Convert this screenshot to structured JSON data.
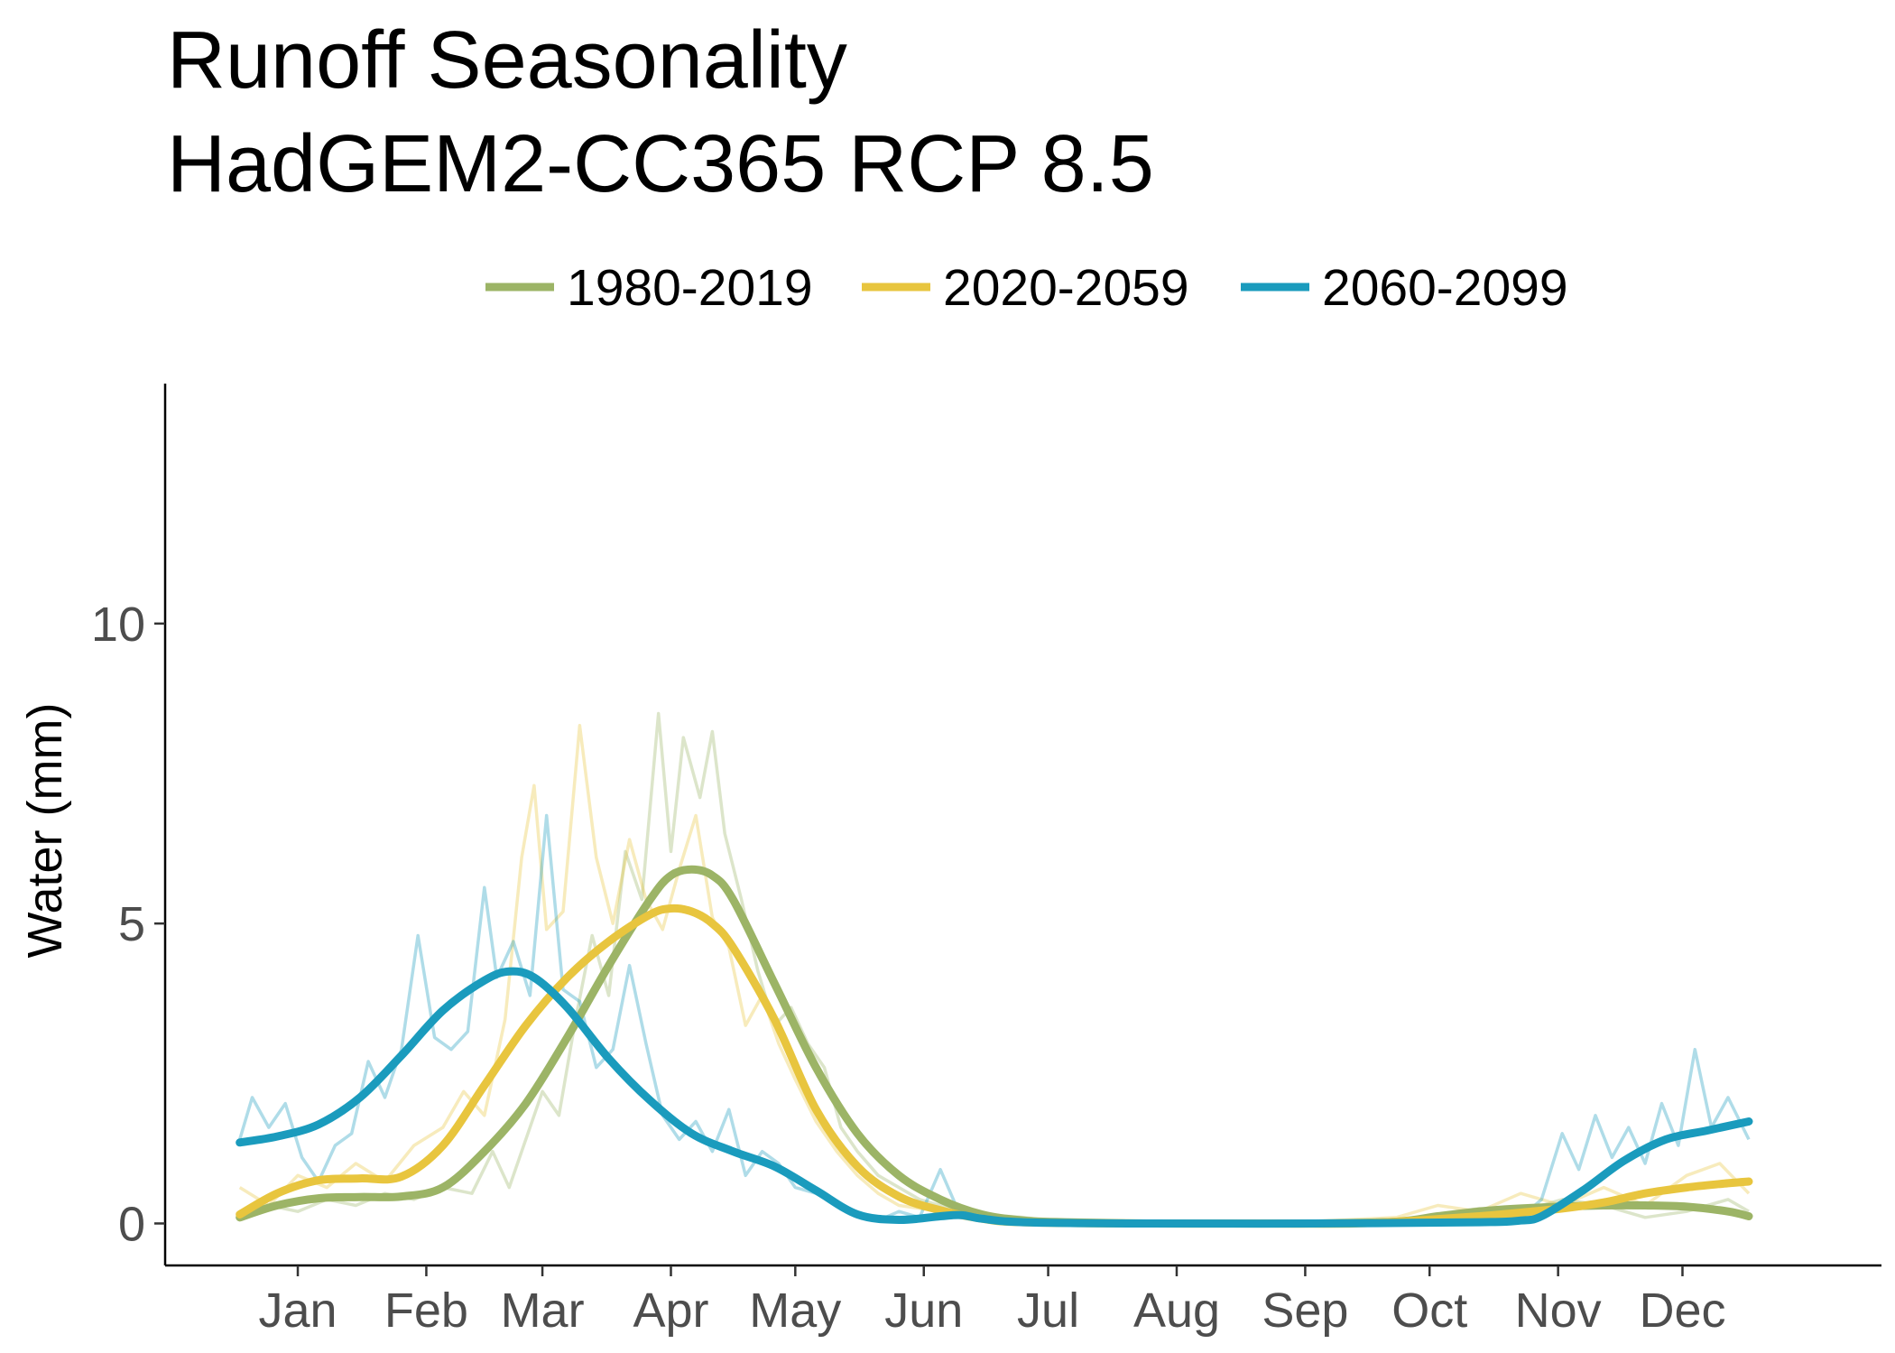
{
  "chart_data": {
    "type": "line",
    "title": "Runoff Seasonality",
    "subtitle": "HadGEM2-CC365 RCP 8.5",
    "xlabel": "",
    "ylabel": "Water (mm)",
    "x_ticks": [
      "Jan",
      "Feb",
      "Mar",
      "Apr",
      "May",
      "Jun",
      "Jul",
      "Aug",
      "Sep",
      "Oct",
      "Nov",
      "Dec"
    ],
    "x_tick_days": [
      15,
      46,
      74,
      105,
      135,
      166,
      196,
      227,
      258,
      288,
      319,
      349
    ],
    "xlim": [
      -17,
      397
    ],
    "y_ticks": [
      0,
      5,
      10
    ],
    "ylim": [
      -0.7,
      14
    ],
    "grid": false,
    "legend_position": "top",
    "series": [
      {
        "name": "1980-2019",
        "color": "#9cb466",
        "smoothed": [
          [
            1,
            0.1
          ],
          [
            10,
            0.3
          ],
          [
            20,
            0.42
          ],
          [
            30,
            0.44
          ],
          [
            40,
            0.45
          ],
          [
            50,
            0.6
          ],
          [
            60,
            1.2
          ],
          [
            70,
            2.0
          ],
          [
            80,
            3.1
          ],
          [
            90,
            4.3
          ],
          [
            100,
            5.4
          ],
          [
            105,
            5.8
          ],
          [
            110,
            5.9
          ],
          [
            115,
            5.8
          ],
          [
            120,
            5.4
          ],
          [
            130,
            4.0
          ],
          [
            140,
            2.6
          ],
          [
            150,
            1.5
          ],
          [
            160,
            0.8
          ],
          [
            170,
            0.4
          ],
          [
            180,
            0.15
          ],
          [
            190,
            0.05
          ],
          [
            200,
            0.02
          ],
          [
            220,
            0.0
          ],
          [
            240,
            0.0
          ],
          [
            260,
            0.0
          ],
          [
            280,
            0.03
          ],
          [
            290,
            0.12
          ],
          [
            300,
            0.2
          ],
          [
            310,
            0.25
          ],
          [
            320,
            0.28
          ],
          [
            330,
            0.3
          ],
          [
            340,
            0.3
          ],
          [
            350,
            0.28
          ],
          [
            360,
            0.2
          ],
          [
            365,
            0.12
          ]
        ],
        "raw": [
          [
            1,
            0.1
          ],
          [
            8,
            0.3
          ],
          [
            15,
            0.2
          ],
          [
            22,
            0.4
          ],
          [
            29,
            0.3
          ],
          [
            36,
            0.5
          ],
          [
            43,
            0.4
          ],
          [
            50,
            0.6
          ],
          [
            57,
            0.5
          ],
          [
            62,
            1.2
          ],
          [
            66,
            0.6
          ],
          [
            70,
            1.4
          ],
          [
            74,
            2.2
          ],
          [
            78,
            1.8
          ],
          [
            82,
            3.4
          ],
          [
            86,
            4.8
          ],
          [
            90,
            3.8
          ],
          [
            94,
            6.2
          ],
          [
            98,
            5.4
          ],
          [
            102,
            8.5
          ],
          [
            105,
            6.2
          ],
          [
            108,
            8.1
          ],
          [
            112,
            7.1
          ],
          [
            115,
            8.2
          ],
          [
            118,
            6.5
          ],
          [
            122,
            5.4
          ],
          [
            126,
            4.2
          ],
          [
            130,
            3.3
          ],
          [
            134,
            3.6
          ],
          [
            138,
            3.0
          ],
          [
            142,
            2.6
          ],
          [
            146,
            1.6
          ],
          [
            150,
            1.2
          ],
          [
            155,
            0.8
          ],
          [
            160,
            0.6
          ],
          [
            165,
            0.4
          ],
          [
            170,
            0.3
          ],
          [
            180,
            0.15
          ],
          [
            190,
            0.1
          ],
          [
            200,
            0.02
          ],
          [
            220,
            0.0
          ],
          [
            260,
            0.0
          ],
          [
            280,
            0.05
          ],
          [
            290,
            0.15
          ],
          [
            300,
            0.25
          ],
          [
            310,
            0.2
          ],
          [
            320,
            0.4
          ],
          [
            330,
            0.3
          ],
          [
            340,
            0.1
          ],
          [
            350,
            0.2
          ],
          [
            360,
            0.4
          ],
          [
            365,
            0.2
          ]
        ]
      },
      {
        "name": "2020-2059",
        "color": "#e8c53e",
        "smoothed": [
          [
            1,
            0.15
          ],
          [
            10,
            0.5
          ],
          [
            20,
            0.72
          ],
          [
            30,
            0.75
          ],
          [
            40,
            0.78
          ],
          [
            50,
            1.3
          ],
          [
            60,
            2.3
          ],
          [
            70,
            3.3
          ],
          [
            80,
            4.1
          ],
          [
            90,
            4.7
          ],
          [
            100,
            5.15
          ],
          [
            105,
            5.25
          ],
          [
            110,
            5.2
          ],
          [
            115,
            5.0
          ],
          [
            120,
            4.6
          ],
          [
            130,
            3.4
          ],
          [
            140,
            1.9
          ],
          [
            150,
            0.95
          ],
          [
            160,
            0.45
          ],
          [
            170,
            0.22
          ],
          [
            180,
            0.08
          ],
          [
            190,
            0.02
          ],
          [
            220,
            0.0
          ],
          [
            250,
            0.0
          ],
          [
            270,
            0.0
          ],
          [
            285,
            0.05
          ],
          [
            300,
            0.12
          ],
          [
            310,
            0.18
          ],
          [
            320,
            0.25
          ],
          [
            330,
            0.35
          ],
          [
            340,
            0.5
          ],
          [
            350,
            0.6
          ],
          [
            360,
            0.67
          ],
          [
            365,
            0.7
          ]
        ],
        "raw": [
          [
            1,
            0.6
          ],
          [
            8,
            0.3
          ],
          [
            15,
            0.8
          ],
          [
            22,
            0.6
          ],
          [
            29,
            1.0
          ],
          [
            36,
            0.7
          ],
          [
            43,
            1.3
          ],
          [
            50,
            1.6
          ],
          [
            55,
            2.2
          ],
          [
            60,
            1.8
          ],
          [
            65,
            3.4
          ],
          [
            69,
            6.1
          ],
          [
            72,
            7.3
          ],
          [
            75,
            4.9
          ],
          [
            79,
            5.2
          ],
          [
            83,
            8.3
          ],
          [
            87,
            6.1
          ],
          [
            91,
            5.0
          ],
          [
            95,
            6.4
          ],
          [
            99,
            5.4
          ],
          [
            103,
            4.9
          ],
          [
            107,
            5.9
          ],
          [
            111,
            6.8
          ],
          [
            115,
            5.1
          ],
          [
            119,
            4.6
          ],
          [
            123,
            3.3
          ],
          [
            127,
            3.8
          ],
          [
            131,
            3.0
          ],
          [
            135,
            2.4
          ],
          [
            140,
            1.7
          ],
          [
            145,
            1.2
          ],
          [
            150,
            0.8
          ],
          [
            155,
            0.5
          ],
          [
            160,
            0.3
          ],
          [
            170,
            0.2
          ],
          [
            180,
            0.05
          ],
          [
            200,
            0.0
          ],
          [
            250,
            0.0
          ],
          [
            280,
            0.1
          ],
          [
            290,
            0.3
          ],
          [
            300,
            0.2
          ],
          [
            310,
            0.5
          ],
          [
            320,
            0.3
          ],
          [
            330,
            0.6
          ],
          [
            340,
            0.3
          ],
          [
            350,
            0.8
          ],
          [
            358,
            1.0
          ],
          [
            365,
            0.5
          ]
        ]
      },
      {
        "name": "2060-2099",
        "color": "#1a9bbd",
        "smoothed": [
          [
            1,
            1.35
          ],
          [
            10,
            1.45
          ],
          [
            20,
            1.65
          ],
          [
            30,
            2.1
          ],
          [
            40,
            2.8
          ],
          [
            50,
            3.55
          ],
          [
            60,
            4.05
          ],
          [
            66,
            4.2
          ],
          [
            72,
            4.1
          ],
          [
            80,
            3.6
          ],
          [
            90,
            2.75
          ],
          [
            100,
            2.05
          ],
          [
            110,
            1.5
          ],
          [
            120,
            1.2
          ],
          [
            130,
            0.95
          ],
          [
            140,
            0.55
          ],
          [
            150,
            0.15
          ],
          [
            160,
            0.06
          ],
          [
            170,
            0.12
          ],
          [
            175,
            0.14
          ],
          [
            180,
            0.08
          ],
          [
            190,
            0.02
          ],
          [
            220,
            0.0
          ],
          [
            260,
            0.0
          ],
          [
            300,
            0.02
          ],
          [
            310,
            0.05
          ],
          [
            315,
            0.12
          ],
          [
            325,
            0.55
          ],
          [
            335,
            1.05
          ],
          [
            345,
            1.4
          ],
          [
            355,
            1.55
          ],
          [
            365,
            1.7
          ]
        ],
        "raw": [
          [
            1,
            1.4
          ],
          [
            4,
            2.1
          ],
          [
            8,
            1.6
          ],
          [
            12,
            2.0
          ],
          [
            16,
            1.1
          ],
          [
            20,
            0.7
          ],
          [
            24,
            1.3
          ],
          [
            28,
            1.5
          ],
          [
            32,
            2.7
          ],
          [
            36,
            2.1
          ],
          [
            40,
            2.9
          ],
          [
            44,
            4.8
          ],
          [
            48,
            3.1
          ],
          [
            52,
            2.9
          ],
          [
            56,
            3.2
          ],
          [
            60,
            5.6
          ],
          [
            63,
            4.1
          ],
          [
            67,
            4.7
          ],
          [
            71,
            3.8
          ],
          [
            75,
            6.8
          ],
          [
            79,
            3.9
          ],
          [
            83,
            3.7
          ],
          [
            87,
            2.6
          ],
          [
            91,
            2.9
          ],
          [
            95,
            4.3
          ],
          [
            99,
            3.0
          ],
          [
            103,
            1.8
          ],
          [
            107,
            1.4
          ],
          [
            111,
            1.7
          ],
          [
            115,
            1.2
          ],
          [
            119,
            1.9
          ],
          [
            123,
            0.8
          ],
          [
            127,
            1.2
          ],
          [
            131,
            1.0
          ],
          [
            135,
            0.6
          ],
          [
            140,
            0.5
          ],
          [
            145,
            0.3
          ],
          [
            150,
            0.15
          ],
          [
            155,
            0.05
          ],
          [
            160,
            0.2
          ],
          [
            165,
            0.1
          ],
          [
            170,
            0.9
          ],
          [
            175,
            0.1
          ],
          [
            180,
            0.05
          ],
          [
            200,
            0.0
          ],
          [
            260,
            0.0
          ],
          [
            300,
            0.0
          ],
          [
            310,
            0.1
          ],
          [
            315,
            0.4
          ],
          [
            320,
            1.5
          ],
          [
            324,
            0.9
          ],
          [
            328,
            1.8
          ],
          [
            332,
            1.1
          ],
          [
            336,
            1.6
          ],
          [
            340,
            1.0
          ],
          [
            344,
            2.0
          ],
          [
            348,
            1.3
          ],
          [
            352,
            2.9
          ],
          [
            356,
            1.6
          ],
          [
            360,
            2.1
          ],
          [
            365,
            1.4
          ]
        ]
      }
    ]
  }
}
